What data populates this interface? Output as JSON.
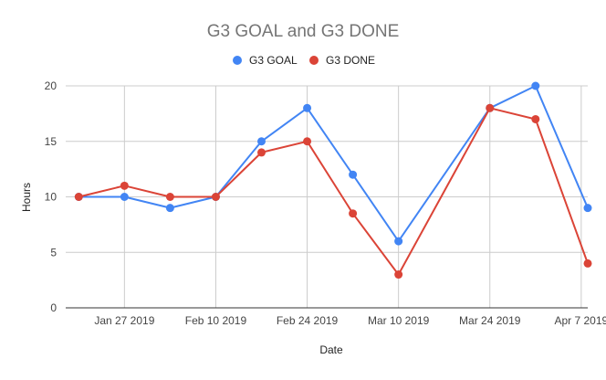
{
  "chart_data": {
    "type": "line",
    "title": "G3 GOAL and G3 DONE",
    "xlabel": "Date",
    "ylabel": "Hours",
    "ylim": [
      0,
      20
    ],
    "yticks": [
      "0",
      "5",
      "10",
      "15",
      "20"
    ],
    "xlim": [
      "2019-01-18",
      "2019-04-08"
    ],
    "x_tick_labels": [
      {
        "date": "2019-01-27",
        "label": "Jan 27 2019"
      },
      {
        "date": "2019-02-10",
        "label": "Feb 10 2019"
      },
      {
        "date": "2019-02-24",
        "label": "Feb 24 2019"
      },
      {
        "date": "2019-03-10",
        "label": "Mar 10 2019"
      },
      {
        "date": "2019-03-24",
        "label": "Mar 24 2019"
      },
      {
        "date": "2019-04-07",
        "label": "Apr 7 2019"
      }
    ],
    "x": [
      "2019-01-20",
      "2019-01-27",
      "2019-02-03",
      "2019-02-10",
      "2019-02-17",
      "2019-02-24",
      "2019-03-03",
      "2019-03-10",
      "2019-03-24",
      "2019-03-31",
      "2019-04-08"
    ],
    "series": [
      {
        "name": "G3 GOAL",
        "color": "#4285f4",
        "values": [
          10,
          10,
          9,
          10,
          15,
          18,
          12,
          6,
          18,
          20,
          9
        ]
      },
      {
        "name": "G3 DONE",
        "color": "#db4437",
        "values": [
          10,
          11,
          10,
          10,
          14,
          15,
          8.5,
          3,
          18,
          17,
          4
        ]
      }
    ],
    "legend_position": "top",
    "grid": true
  }
}
